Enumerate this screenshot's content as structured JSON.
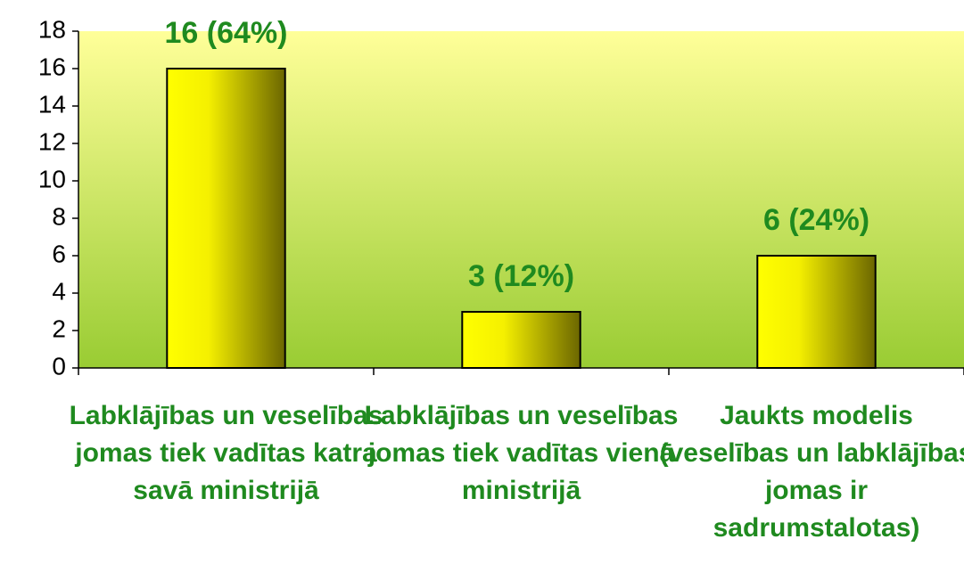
{
  "chart_data": {
    "type": "bar",
    "categories": [
      "Labklājības un veselības jomas tiek vadītas katra savā ministrijā",
      "Labklājības un veselības jomas tiek vadītas vienā ministrijā",
      "Jaukts modelis (veselības un labklājības jomas ir sadrumstalotas)"
    ],
    "values": [
      16,
      3,
      6
    ],
    "value_labels": [
      "16 (64%)",
      "3 (12%)",
      "6 (24%)"
    ],
    "color": "#ffff00",
    "ylim": [
      0,
      18
    ],
    "yticks": [
      0,
      2,
      4,
      6,
      8,
      10,
      12,
      14,
      16,
      18
    ],
    "grid": false
  }
}
